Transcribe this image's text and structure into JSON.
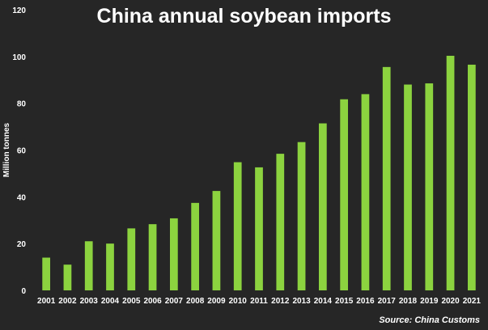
{
  "chart_data": {
    "type": "bar",
    "title": "China annual soybean imports",
    "xlabel": "",
    "ylabel": "Million tonnes",
    "ylim": [
      0,
      120
    ],
    "yticks": [
      0,
      20,
      40,
      60,
      80,
      100,
      120
    ],
    "categories": [
      "2001",
      "2002",
      "2003",
      "2004",
      "2005",
      "2006",
      "2007",
      "2008",
      "2009",
      "2010",
      "2011",
      "2012",
      "2013",
      "2014",
      "2015",
      "2016",
      "2017",
      "2018",
      "2019",
      "2020",
      "2021"
    ],
    "values": [
      14,
      11,
      21,
      20,
      26.5,
      28.3,
      30.8,
      37.4,
      42.5,
      54.8,
      52.6,
      58.4,
      63.4,
      71.4,
      81.7,
      83.9,
      95.5,
      88.0,
      88.5,
      100.3,
      96.5
    ],
    "bar_color": "#8cd33f",
    "grid": false,
    "legend": "none"
  },
  "source": "Source: China Customs"
}
